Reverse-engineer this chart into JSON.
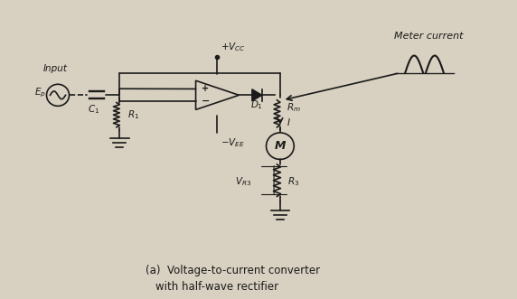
{
  "bg_color": "#d8d0c0",
  "title": "",
  "caption_line1": "(a)  Voltage-to-current converter",
  "caption_line2": "with half-wave rectifier",
  "meter_current_label": "Meter current",
  "input_label": "Input",
  "ep_label": "E_p",
  "c1_label": "C_1",
  "r1_label": "R_1",
  "d1_label": "D_1",
  "rm_label": "R_m",
  "i_label": "I",
  "vcc_label": "+V_CC",
  "vee_label": "-V_EE",
  "m_label": "M",
  "vr3_label": "V_R3",
  "r3_label": "R_3",
  "line_color": "#1a1a1a",
  "text_color": "#1a1a1a"
}
